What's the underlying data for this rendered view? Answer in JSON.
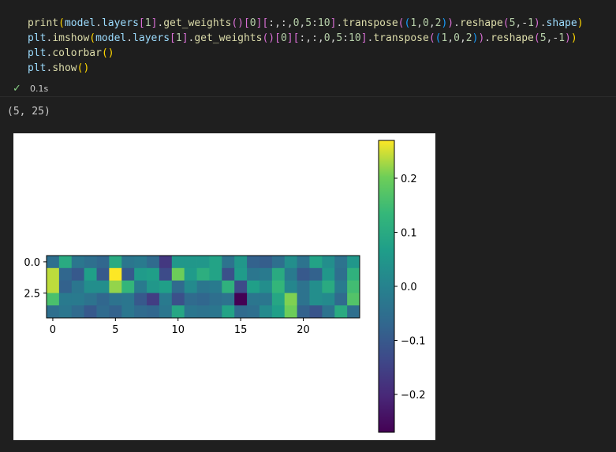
{
  "code_lines": [
    [
      [
        "print",
        "fn"
      ],
      [
        "(",
        "br1"
      ],
      [
        "model",
        "var"
      ],
      [
        ".",
        "op"
      ],
      [
        "layers",
        "var"
      ],
      [
        "[",
        "br2"
      ],
      [
        "1",
        "num"
      ],
      [
        "]",
        "br2"
      ],
      [
        ".",
        "op"
      ],
      [
        "get_weights",
        "fn"
      ],
      [
        "()",
        "br2"
      ],
      [
        "[",
        "br2"
      ],
      [
        "0",
        "num"
      ],
      [
        "]",
        "br2"
      ],
      [
        "[",
        "br2"
      ],
      [
        ":,:,",
        "op"
      ],
      [
        "0",
        "num"
      ],
      [
        ",",
        "op"
      ],
      [
        "5",
        "num"
      ],
      [
        ":",
        "op"
      ],
      [
        "10",
        "num"
      ],
      [
        "]",
        "br2"
      ],
      [
        ".",
        "op"
      ],
      [
        "transpose",
        "fn"
      ],
      [
        "(",
        "br2"
      ],
      [
        "(",
        "br3"
      ],
      [
        "1",
        "num"
      ],
      [
        ",",
        "op"
      ],
      [
        "0",
        "num"
      ],
      [
        ",",
        "op"
      ],
      [
        "2",
        "num"
      ],
      [
        ")",
        "br3"
      ],
      [
        ")",
        "br2"
      ],
      [
        ".",
        "op"
      ],
      [
        "reshape",
        "fn"
      ],
      [
        "(",
        "br2"
      ],
      [
        "5",
        "num"
      ],
      [
        ",-",
        "op"
      ],
      [
        "1",
        "num"
      ],
      [
        ")",
        "br2"
      ],
      [
        ".",
        "op"
      ],
      [
        "shape",
        "var"
      ],
      [
        ")",
        "br1"
      ]
    ],
    [
      [
        "plt",
        "var"
      ],
      [
        ".",
        "op"
      ],
      [
        "imshow",
        "fn"
      ],
      [
        "(",
        "br1"
      ],
      [
        "model",
        "var"
      ],
      [
        ".",
        "op"
      ],
      [
        "layers",
        "var"
      ],
      [
        "[",
        "br2"
      ],
      [
        "1",
        "num"
      ],
      [
        "]",
        "br2"
      ],
      [
        ".",
        "op"
      ],
      [
        "get_weights",
        "fn"
      ],
      [
        "()",
        "br2"
      ],
      [
        "[",
        "br2"
      ],
      [
        "0",
        "num"
      ],
      [
        "]",
        "br2"
      ],
      [
        "[",
        "br2"
      ],
      [
        ":,:,",
        "op"
      ],
      [
        "0",
        "num"
      ],
      [
        ",",
        "op"
      ],
      [
        "5",
        "num"
      ],
      [
        ":",
        "op"
      ],
      [
        "10",
        "num"
      ],
      [
        "]",
        "br2"
      ],
      [
        ".",
        "op"
      ],
      [
        "transpose",
        "fn"
      ],
      [
        "(",
        "br2"
      ],
      [
        "(",
        "br3"
      ],
      [
        "1",
        "num"
      ],
      [
        ",",
        "op"
      ],
      [
        "0",
        "num"
      ],
      [
        ",",
        "op"
      ],
      [
        "2",
        "num"
      ],
      [
        ")",
        "br3"
      ],
      [
        ")",
        "br2"
      ],
      [
        ".",
        "op"
      ],
      [
        "reshape",
        "fn"
      ],
      [
        "(",
        "br2"
      ],
      [
        "5",
        "num"
      ],
      [
        ",-",
        "op"
      ],
      [
        "1",
        "num"
      ],
      [
        ")",
        "br2"
      ],
      [
        ")",
        "br1"
      ]
    ],
    [
      [
        "plt",
        "var"
      ],
      [
        ".",
        "op"
      ],
      [
        "colorbar",
        "fn"
      ],
      [
        "()",
        "br1"
      ]
    ],
    [
      [
        "plt",
        "var"
      ],
      [
        ".",
        "op"
      ],
      [
        "show",
        "fn"
      ],
      [
        "()",
        "br1"
      ]
    ]
  ],
  "status": {
    "check_icon": "check-icon",
    "exec_time": "0.1s"
  },
  "output": {
    "text": "(5, 25)"
  },
  "chart_data": {
    "type": "heatmap",
    "rows": 5,
    "cols": 25,
    "vmin": -0.27,
    "vmax": 0.27,
    "colormap": "viridis",
    "values": [
      [
        -0.05,
        0.1,
        -0.03,
        -0.05,
        -0.07,
        0.1,
        -0.03,
        -0.02,
        -0.06,
        -0.17,
        0.05,
        0.05,
        0.05,
        0.08,
        -0.04,
        0.05,
        -0.08,
        -0.09,
        -0.05,
        0.03,
        -0.04,
        0.08,
        0.03,
        -0.04,
        0.05
      ],
      [
        0.24,
        -0.07,
        -0.1,
        0.07,
        -0.1,
        0.27,
        -0.1,
        0.06,
        0.07,
        -0.13,
        0.2,
        0.06,
        0.11,
        0.08,
        -0.12,
        0.06,
        -0.03,
        -0.02,
        0.1,
        -0.02,
        -0.1,
        -0.08,
        0.05,
        -0.05,
        0.12
      ],
      [
        0.24,
        -0.08,
        -0.03,
        0.03,
        0.03,
        0.22,
        0.13,
        -0.02,
        0.05,
        0.07,
        -0.06,
        0.02,
        -0.03,
        -0.02,
        0.12,
        -0.13,
        0.07,
        0.03,
        0.13,
        0.01,
        -0.04,
        0.03,
        0.1,
        -0.02,
        0.15
      ],
      [
        0.16,
        -0.02,
        -0.02,
        -0.04,
        -0.07,
        -0.04,
        -0.03,
        -0.1,
        -0.16,
        -0.02,
        -0.12,
        -0.06,
        -0.07,
        -0.05,
        -0.04,
        -0.27,
        -0.03,
        -0.03,
        0.09,
        0.21,
        -0.04,
        0.03,
        0.02,
        -0.06,
        0.17
      ],
      [
        -0.05,
        -0.03,
        -0.06,
        -0.1,
        -0.06,
        -0.08,
        -0.03,
        -0.06,
        -0.07,
        -0.03,
        0.09,
        -0.03,
        -0.04,
        -0.03,
        0.08,
        -0.06,
        -0.05,
        0.02,
        0.07,
        0.2,
        -0.08,
        -0.11,
        -0.04,
        0.1,
        -0.05
      ]
    ],
    "xticks": [
      0,
      5,
      10,
      15,
      20
    ],
    "xtick_labels": [
      "0",
      "5",
      "10",
      "15",
      "20"
    ],
    "yticks": [
      0.0,
      2.5
    ],
    "ytick_labels": [
      "0.0",
      "2.5"
    ],
    "colorbar_ticks": [
      0.2,
      0.1,
      0.0,
      -0.1,
      -0.2
    ],
    "colorbar_tick_labels": [
      "0.2",
      "0.1",
      "0.0",
      "−0.1",
      "−0.2"
    ],
    "title": "",
    "xlabel": "",
    "ylabel": ""
  }
}
